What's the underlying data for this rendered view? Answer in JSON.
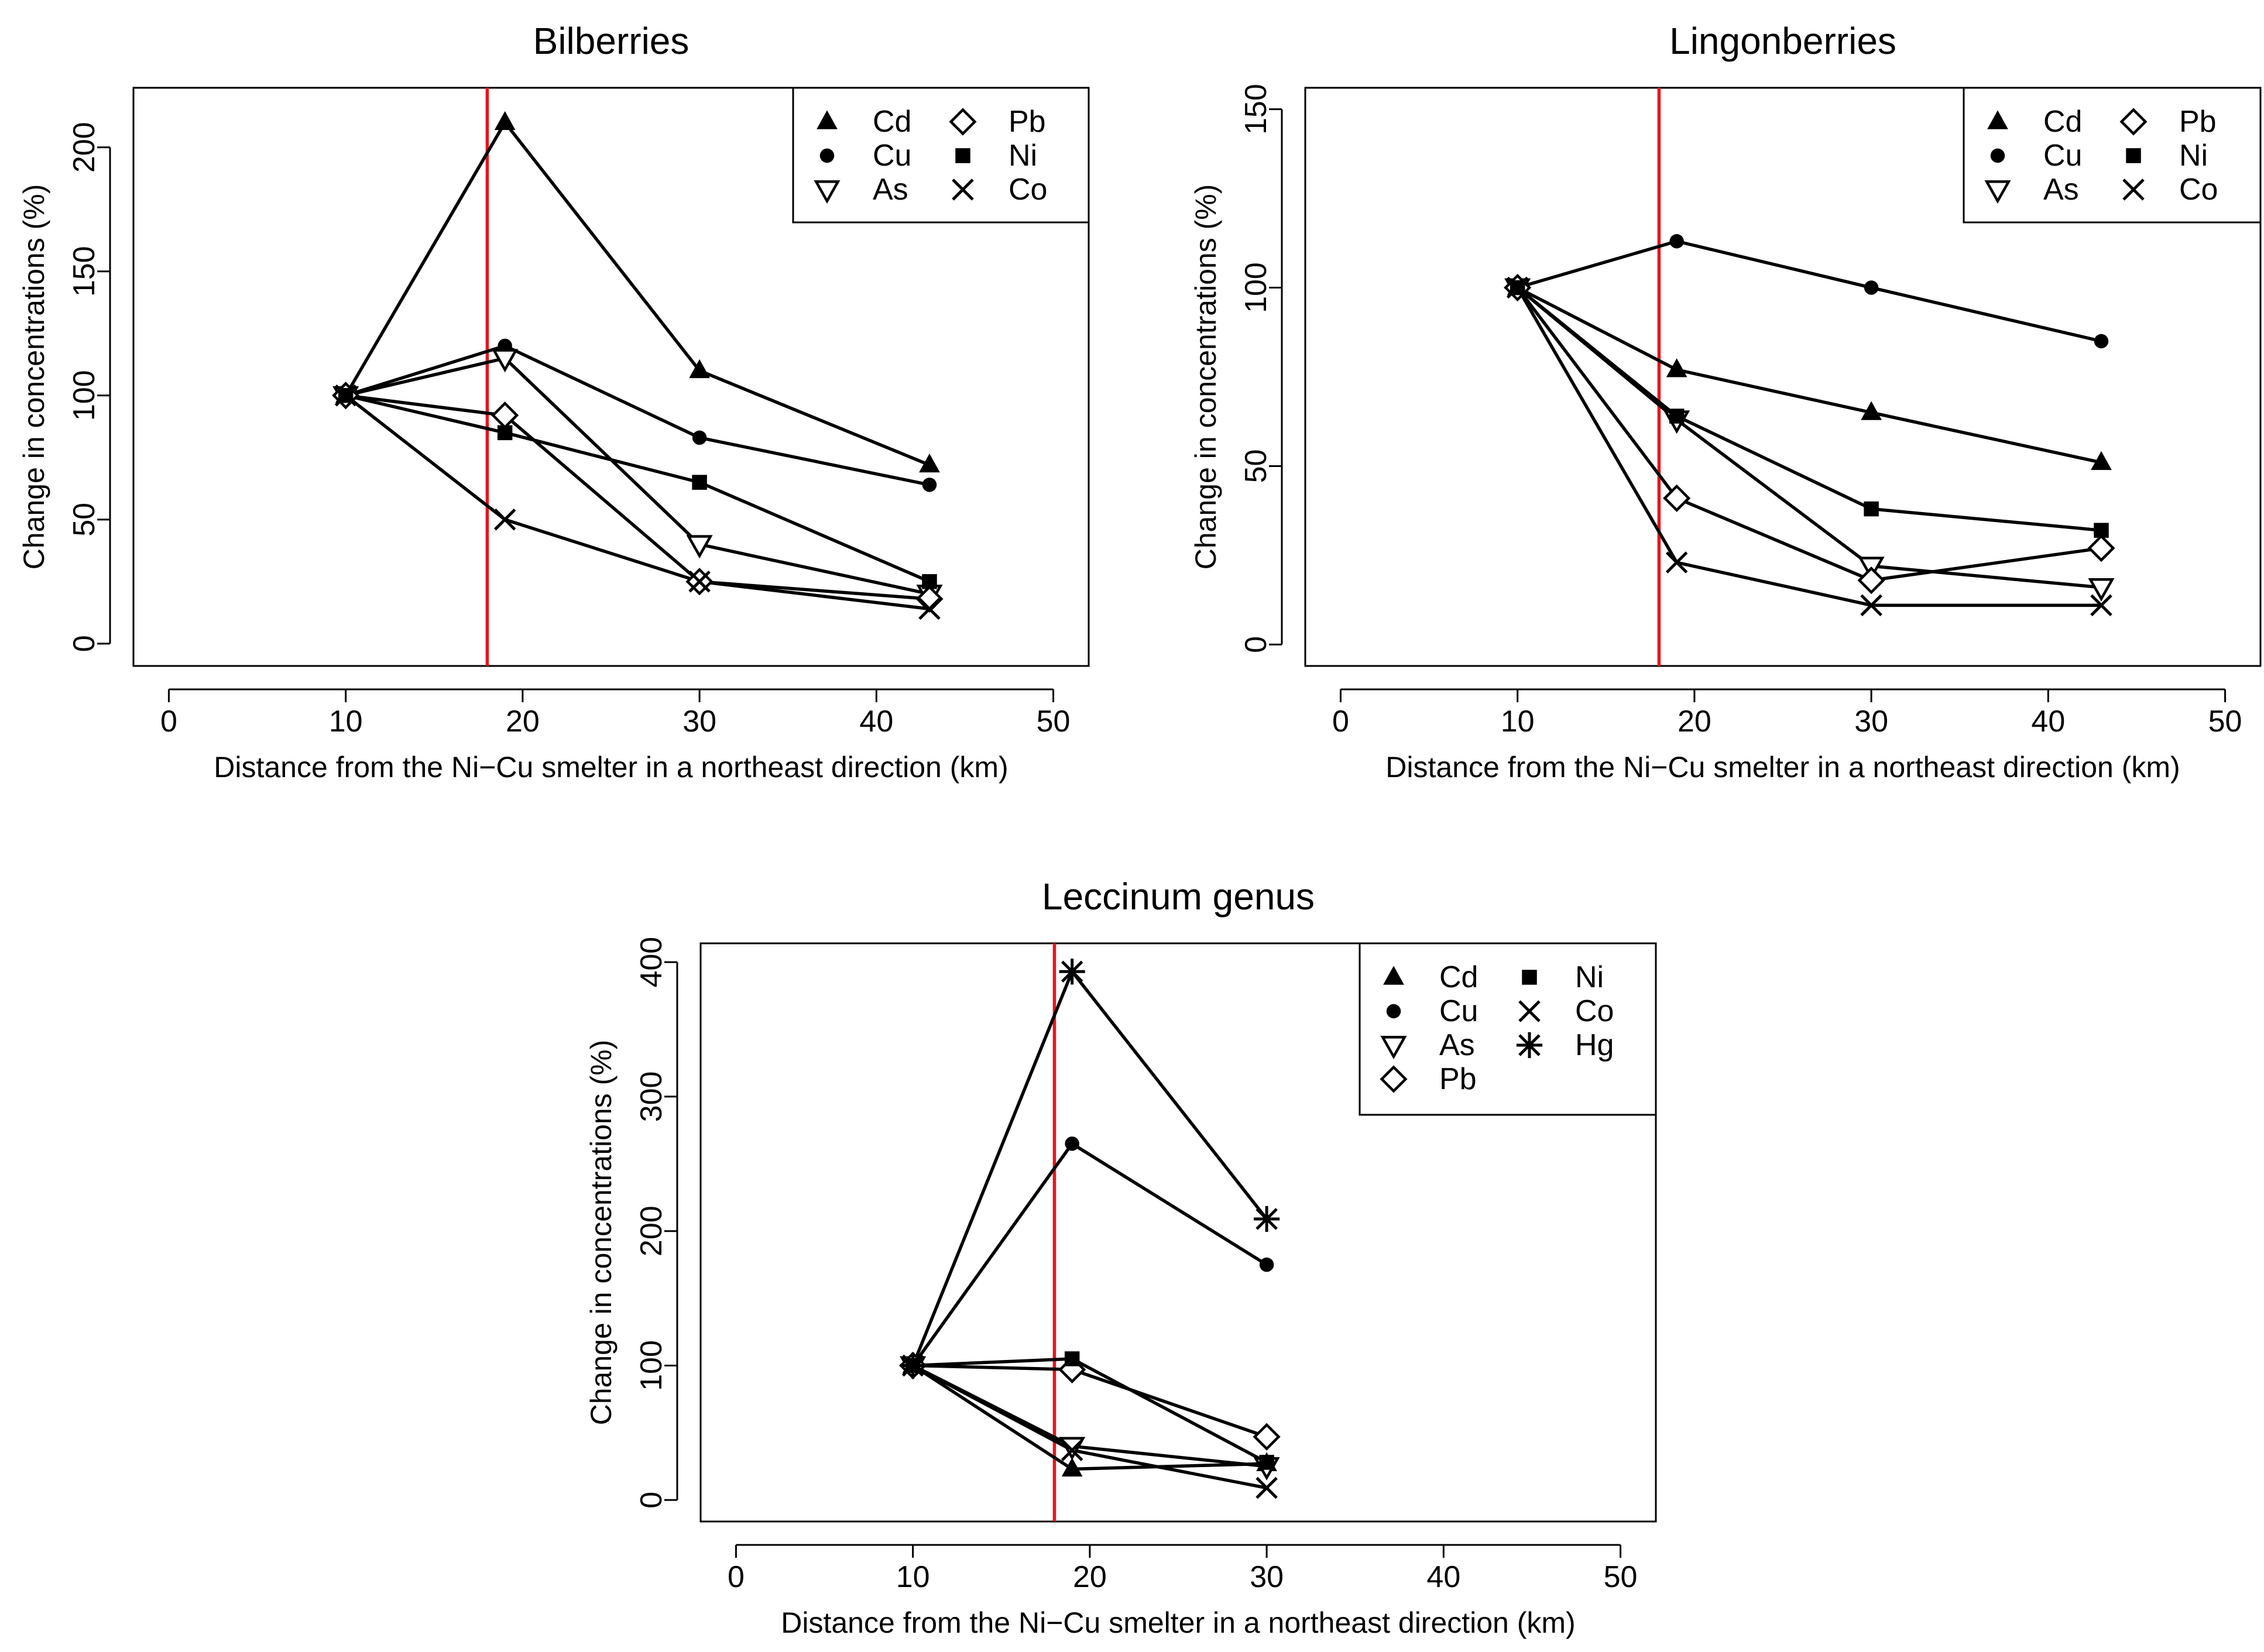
{
  "chart_data": [
    {
      "type": "line",
      "title": "Bilberries",
      "xlabel": "Distance from the Ni−Cu smelter in a northeast direction (km)",
      "ylabel": "Change in concentrations (%)",
      "xlim": [
        -2,
        52
      ],
      "ylim": [
        -9,
        224
      ],
      "xticks": [
        0,
        10,
        20,
        30,
        40,
        50
      ],
      "yticks": [
        0,
        50,
        100,
        150,
        200
      ],
      "vline": {
        "x": 18,
        "color": "#e8141b"
      },
      "legend_position": "top-right",
      "legend_columns": 2,
      "series": [
        {
          "name": "Cd",
          "marker": "triangle-up",
          "x": [
            10,
            19,
            30,
            43
          ],
          "values": [
            100,
            210,
            110,
            72
          ]
        },
        {
          "name": "Cu",
          "marker": "circle",
          "x": [
            10,
            19,
            30,
            43
          ],
          "values": [
            100,
            120,
            83,
            64
          ]
        },
        {
          "name": "As",
          "marker": "triangle-down",
          "x": [
            10,
            19,
            30,
            43
          ],
          "values": [
            100,
            115,
            40,
            20
          ]
        },
        {
          "name": "Pb",
          "marker": "diamond",
          "x": [
            10,
            19,
            30,
            43
          ],
          "values": [
            100,
            92,
            25,
            18
          ]
        },
        {
          "name": "Ni",
          "marker": "square",
          "x": [
            10,
            19,
            30,
            43
          ],
          "values": [
            100,
            85,
            65,
            25
          ]
        },
        {
          "name": "Co",
          "marker": "cross",
          "x": [
            10,
            19,
            30,
            43
          ],
          "values": [
            100,
            50,
            25,
            14
          ]
        }
      ]
    },
    {
      "type": "line",
      "title": "Lingonberries",
      "xlabel": "Distance from the Ni−Cu smelter in a northeast direction (km)",
      "ylabel": "Change in concentrations (%)",
      "xlim": [
        -2,
        52
      ],
      "ylim": [
        -6,
        156
      ],
      "xticks": [
        0,
        10,
        20,
        30,
        40,
        50
      ],
      "yticks": [
        0,
        50,
        100,
        150
      ],
      "vline": {
        "x": 18,
        "color": "#e8141b"
      },
      "legend_position": "top-right",
      "legend_columns": 2,
      "series": [
        {
          "name": "Cd",
          "marker": "triangle-up",
          "x": [
            10,
            19,
            30,
            43
          ],
          "values": [
            100,
            77,
            65,
            51
          ]
        },
        {
          "name": "Cu",
          "marker": "circle",
          "x": [
            10,
            19,
            30,
            43
          ],
          "values": [
            100,
            113,
            100,
            85
          ]
        },
        {
          "name": "As",
          "marker": "triangle-down",
          "x": [
            10,
            19,
            30,
            43
          ],
          "values": [
            100,
            63,
            22,
            16
          ]
        },
        {
          "name": "Pb",
          "marker": "diamond",
          "x": [
            10,
            19,
            30,
            43
          ],
          "values": [
            100,
            41,
            18,
            27
          ]
        },
        {
          "name": "Ni",
          "marker": "square",
          "x": [
            10,
            19,
            30,
            43
          ],
          "values": [
            100,
            64,
            38,
            32
          ]
        },
        {
          "name": "Co",
          "marker": "cross",
          "x": [
            10,
            19,
            30,
            43
          ],
          "values": [
            100,
            23,
            11,
            11
          ]
        }
      ]
    },
    {
      "type": "line",
      "title": "Leccinum genus",
      "xlabel": "Distance from the Ni−Cu smelter in a northeast direction (km)",
      "ylabel": "Change in concentrations (%)",
      "xlim": [
        -2,
        52
      ],
      "ylim": [
        -16,
        414
      ],
      "xticks": [
        0,
        10,
        20,
        30,
        40,
        50
      ],
      "yticks": [
        0,
        100,
        200,
        300,
        400
      ],
      "vline": {
        "x": 18,
        "color": "#e8141b"
      },
      "legend_position": "top-right",
      "legend_columns": 2,
      "series": [
        {
          "name": "Cd",
          "marker": "triangle-up",
          "x": [
            10,
            19,
            30
          ],
          "values": [
            100,
            23,
            27
          ]
        },
        {
          "name": "Cu",
          "marker": "circle",
          "x": [
            10,
            19,
            30
          ],
          "values": [
            100,
            265,
            175
          ]
        },
        {
          "name": "As",
          "marker": "triangle-down",
          "x": [
            10,
            19,
            30
          ],
          "values": [
            100,
            40,
            25
          ]
        },
        {
          "name": "Pb",
          "marker": "diamond",
          "x": [
            10,
            19,
            30
          ],
          "values": [
            100,
            97,
            47
          ]
        },
        {
          "name": "Ni",
          "marker": "square",
          "x": [
            10,
            19,
            30
          ],
          "values": [
            100,
            105,
            28
          ]
        },
        {
          "name": "Co",
          "marker": "cross",
          "x": [
            10,
            19,
            30
          ],
          "values": [
            100,
            37,
            9
          ]
        },
        {
          "name": "Hg",
          "marker": "asterisk",
          "x": [
            10,
            19,
            30
          ],
          "values": [
            100,
            393,
            209
          ]
        }
      ]
    }
  ]
}
